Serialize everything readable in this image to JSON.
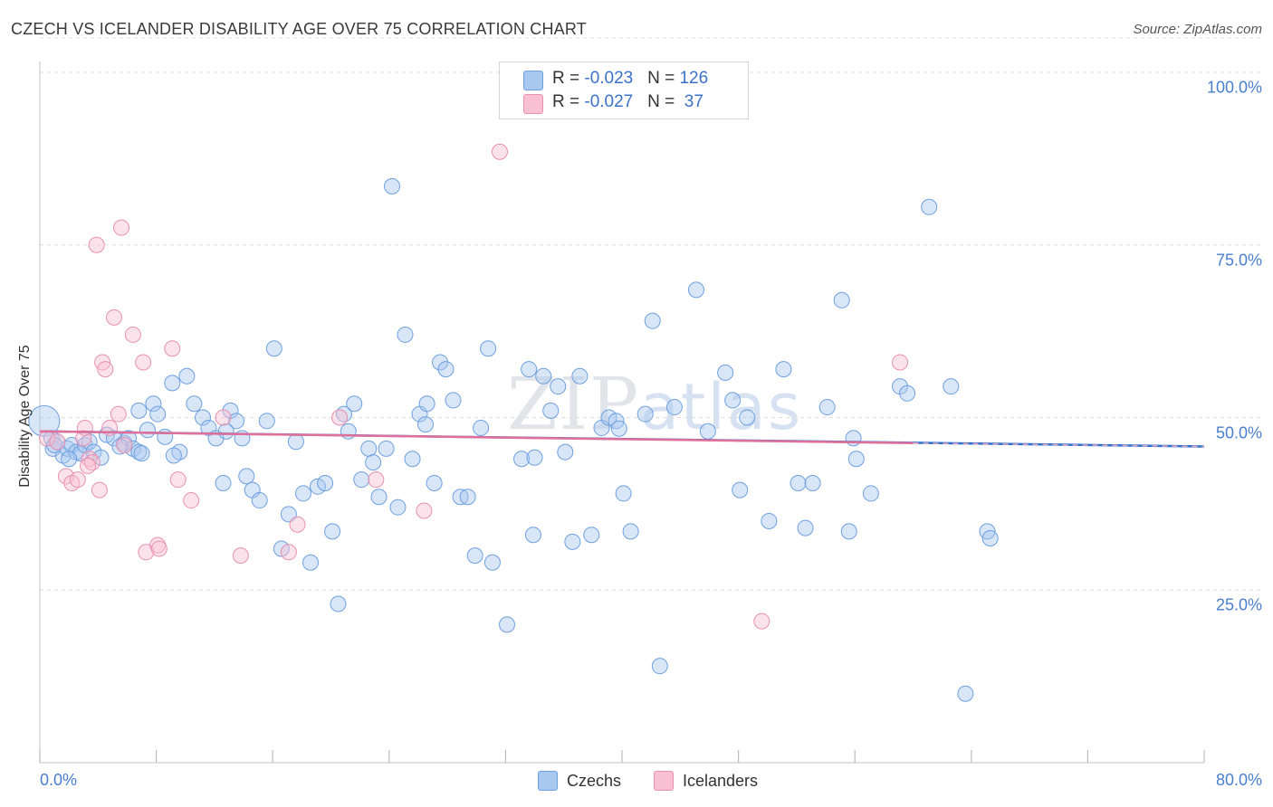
{
  "title": "CZECH VS ICELANDER DISABILITY AGE OVER 75 CORRELATION CHART",
  "source": "Source: ZipAtlas.com",
  "watermark": {
    "zip": "ZIP",
    "atlas": "atlas"
  },
  "legend": {
    "rows": [
      {
        "r_label": "R = ",
        "r_value": "-0.023",
        "n_label": "N = ",
        "n_value": "126",
        "color": "#a8c8f0",
        "border": "#6fa0e0"
      },
      {
        "r_label": "R = ",
        "r_value": "-0.027",
        "n_label": "N = ",
        "n_value": " 37",
        "color": "#f8c0d2",
        "border": "#e890b0"
      }
    ]
  },
  "bottom_legend": [
    {
      "label": "Czechs",
      "color": "#a8c8f0",
      "border": "#6fa0e0"
    },
    {
      "label": "Icelanders",
      "color": "#f8c0d2",
      "border": "#e890b0"
    }
  ],
  "chart_data": {
    "type": "scatter",
    "title": "CZECH VS ICELANDER DISABILITY AGE OVER 75 CORRELATION CHART",
    "xlabel": "",
    "ylabel": "Disability Age Over 75",
    "xlim": [
      0,
      80
    ],
    "ylim": [
      0,
      105
    ],
    "x_ticks": [
      "0.0%",
      "80.0%"
    ],
    "y_ticks": [
      {
        "value": 25,
        "label": "25.0%"
      },
      {
        "value": 50,
        "label": "50.0%"
      },
      {
        "value": 75,
        "label": "75.0%"
      },
      {
        "value": 100,
        "label": "100.0%"
      }
    ],
    "grid": true,
    "colors": {
      "czechs": "#6fa0e0",
      "icelanders": "#e890b0",
      "czech_line": "#2b6fd0",
      "icelander_line": "#e0709a"
    },
    "series": [
      {
        "name": "Czechs",
        "trend": {
          "x": [
            0,
            80
          ],
          "y": [
            48.0,
            45.8
          ]
        },
        "points": [
          [
            0.3,
            49.5
          ],
          [
            0.8,
            47
          ],
          [
            0.9,
            45.5
          ],
          [
            1.2,
            46.5
          ],
          [
            1.6,
            44.5
          ],
          [
            1.9,
            45.5
          ],
          [
            2.2,
            46
          ],
          [
            2.5,
            45
          ],
          [
            2.8,
            44.8
          ],
          [
            3.1,
            46
          ],
          [
            3.4,
            46.5
          ],
          [
            3.7,
            45
          ],
          [
            4.2,
            44.2
          ],
          [
            4.6,
            47.5
          ],
          [
            5.1,
            47
          ],
          [
            5.8,
            46.3
          ],
          [
            6.1,
            47
          ],
          [
            6.4,
            45.5
          ],
          [
            6.8,
            45
          ],
          [
            7.0,
            44.8
          ],
          [
            7.4,
            48.2
          ],
          [
            7.8,
            52
          ],
          [
            8.1,
            50.5
          ],
          [
            8.6,
            47.2
          ],
          [
            9.1,
            55
          ],
          [
            9.6,
            45
          ],
          [
            10.1,
            56
          ],
          [
            10.6,
            52
          ],
          [
            11.2,
            50
          ],
          [
            11.6,
            48.5
          ],
          [
            12.1,
            47
          ],
          [
            12.6,
            40.5
          ],
          [
            13.1,
            51
          ],
          [
            13.5,
            49.5
          ],
          [
            13.9,
            47
          ],
          [
            14.2,
            41.5
          ],
          [
            14.6,
            39.5
          ],
          [
            15.1,
            38
          ],
          [
            15.6,
            49.5
          ],
          [
            16.1,
            60
          ],
          [
            16.6,
            31
          ],
          [
            17.1,
            36
          ],
          [
            17.6,
            46.5
          ],
          [
            18.1,
            39
          ],
          [
            18.6,
            29
          ],
          [
            19.1,
            40
          ],
          [
            19.6,
            40.5
          ],
          [
            20.1,
            33.5
          ],
          [
            20.5,
            23
          ],
          [
            20.9,
            50.5
          ],
          [
            21.2,
            48
          ],
          [
            21.6,
            52
          ],
          [
            22.1,
            41
          ],
          [
            22.6,
            45.5
          ],
          [
            22.9,
            43.5
          ],
          [
            23.3,
            38.5
          ],
          [
            23.8,
            45.5
          ],
          [
            24.2,
            83.5
          ],
          [
            24.6,
            37
          ],
          [
            25.1,
            62
          ],
          [
            25.6,
            44
          ],
          [
            26.1,
            50.5
          ],
          [
            26.6,
            52
          ],
          [
            27.1,
            40.5
          ],
          [
            27.5,
            58
          ],
          [
            27.9,
            57
          ],
          [
            28.4,
            52.5
          ],
          [
            28.9,
            38.5
          ],
          [
            29.4,
            38.5
          ],
          [
            29.9,
            30
          ],
          [
            30.3,
            48.5
          ],
          [
            30.8,
            60
          ],
          [
            31.1,
            29
          ],
          [
            32.1,
            20
          ],
          [
            33.1,
            44
          ],
          [
            33.6,
            57
          ],
          [
            33.9,
            33
          ],
          [
            34.6,
            56
          ],
          [
            35.1,
            51
          ],
          [
            35.6,
            54.5
          ],
          [
            36.1,
            45
          ],
          [
            36.6,
            32
          ],
          [
            37.1,
            56
          ],
          [
            37.9,
            33
          ],
          [
            38.6,
            48.5
          ],
          [
            39.1,
            50
          ],
          [
            39.6,
            49.5
          ],
          [
            40.1,
            39
          ],
          [
            40.6,
            33.5
          ],
          [
            41.6,
            50.5
          ],
          [
            42.1,
            64
          ],
          [
            42.6,
            14
          ],
          [
            43.6,
            51.5
          ],
          [
            45.1,
            68.5
          ],
          [
            45.9,
            48
          ],
          [
            47.1,
            56.5
          ],
          [
            47.6,
            52.5
          ],
          [
            48.1,
            39.5
          ],
          [
            48.6,
            50
          ],
          [
            50.1,
            35
          ],
          [
            51.1,
            57
          ],
          [
            52.1,
            40.5
          ],
          [
            52.6,
            34
          ],
          [
            53.1,
            40.5
          ],
          [
            54.1,
            51.5
          ],
          [
            55.1,
            67
          ],
          [
            55.6,
            33.5
          ],
          [
            55.9,
            47
          ],
          [
            56.1,
            44
          ],
          [
            57.1,
            39
          ],
          [
            59.1,
            54.5
          ],
          [
            59.6,
            53.5
          ],
          [
            61.1,
            80.5
          ],
          [
            62.6,
            54.5
          ],
          [
            63.6,
            10
          ],
          [
            65.1,
            33.5
          ],
          [
            65.3,
            32.5
          ],
          [
            1.0,
            46
          ],
          [
            2.0,
            44
          ],
          [
            5.5,
            45.8
          ],
          [
            9.2,
            44.5
          ],
          [
            12.8,
            48
          ],
          [
            26.5,
            49
          ],
          [
            34.0,
            44.2
          ],
          [
            39.8,
            48.4
          ],
          [
            6.8,
            51
          ]
        ]
      },
      {
        "name": "Icelanders",
        "trend": {
          "x": [
            0,
            60
          ],
          "y": [
            48.0,
            46.3
          ]
        },
        "trend_extension": {
          "x": [
            60,
            80
          ],
          "y": [
            46.3,
            45.8
          ]
        },
        "points": [
          [
            0.5,
            47
          ],
          [
            1.2,
            46.5
          ],
          [
            1.8,
            41.5
          ],
          [
            2.2,
            40.5
          ],
          [
            2.6,
            41
          ],
          [
            3.0,
            47
          ],
          [
            3.1,
            48.5
          ],
          [
            3.4,
            44
          ],
          [
            3.6,
            43.5
          ],
          [
            3.9,
            75
          ],
          [
            4.1,
            39.5
          ],
          [
            4.3,
            58
          ],
          [
            4.5,
            57
          ],
          [
            4.8,
            48.5
          ],
          [
            5.1,
            64.5
          ],
          [
            5.4,
            50.5
          ],
          [
            5.6,
            77.5
          ],
          [
            5.8,
            46
          ],
          [
            6.4,
            62
          ],
          [
            7.1,
            58
          ],
          [
            7.3,
            30.5
          ],
          [
            8.1,
            31.5
          ],
          [
            8.2,
            31
          ],
          [
            9.1,
            60
          ],
          [
            9.5,
            41
          ],
          [
            10.4,
            38
          ],
          [
            12.6,
            50
          ],
          [
            13.8,
            30
          ],
          [
            17.1,
            30.5
          ],
          [
            17.7,
            34.5
          ],
          [
            20.6,
            50
          ],
          [
            23.1,
            41
          ],
          [
            26.4,
            36.5
          ],
          [
            31.6,
            88.5
          ],
          [
            49.6,
            20.5
          ],
          [
            59.1,
            58
          ],
          [
            3.3,
            43
          ]
        ]
      }
    ]
  }
}
